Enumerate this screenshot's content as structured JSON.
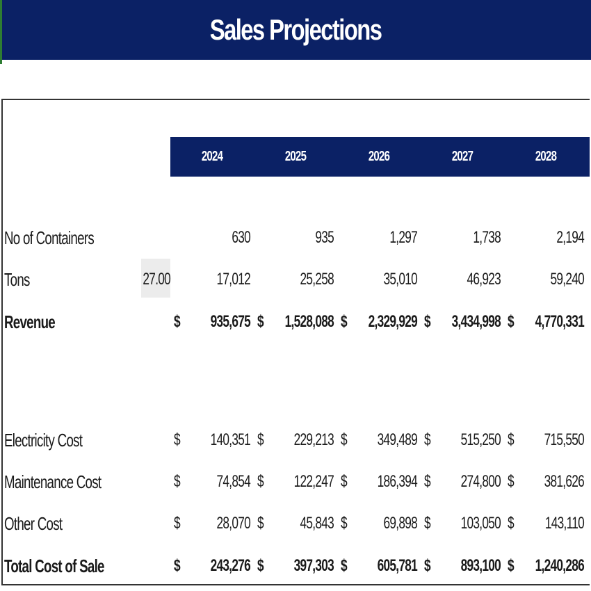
{
  "title": "Sales Projections",
  "currency_symbol": "$",
  "years": [
    "2024",
    "2025",
    "2026",
    "2027",
    "2028"
  ],
  "tons_per_container": "27.00",
  "rows": {
    "containers": {
      "label": "No of Containers",
      "values": [
        "630",
        "935",
        "1,297",
        "1,738",
        "2,194"
      ]
    },
    "tons": {
      "label": "Tons",
      "values": [
        "17,012",
        "25,258",
        "35,010",
        "46,923",
        "59,240"
      ]
    },
    "revenue": {
      "label": "Revenue",
      "values": [
        "935,675",
        "1,528,088",
        "2,329,929",
        "3,434,998",
        "4,770,331"
      ]
    },
    "electricity": {
      "label": "Electricity Cost",
      "values": [
        "140,351",
        "229,213",
        "349,489",
        "515,250",
        "715,550"
      ]
    },
    "maintenance": {
      "label": "Maintenance Cost",
      "values": [
        "74,854",
        "122,247",
        "186,394",
        "274,800",
        "381,626"
      ]
    },
    "other": {
      "label": "Other Cost",
      "values": [
        "28,070",
        "45,843",
        "69,898",
        "103,050",
        "143,110"
      ]
    },
    "total_cost": {
      "label": "Total Cost of Sale",
      "values": [
        "243,276",
        "397,303",
        "605,781",
        "893,100",
        "1,240,286"
      ]
    }
  },
  "colors": {
    "header_bg": "#0b2165",
    "header_text": "#ffffff",
    "input_cell_bg": "#ececec"
  }
}
